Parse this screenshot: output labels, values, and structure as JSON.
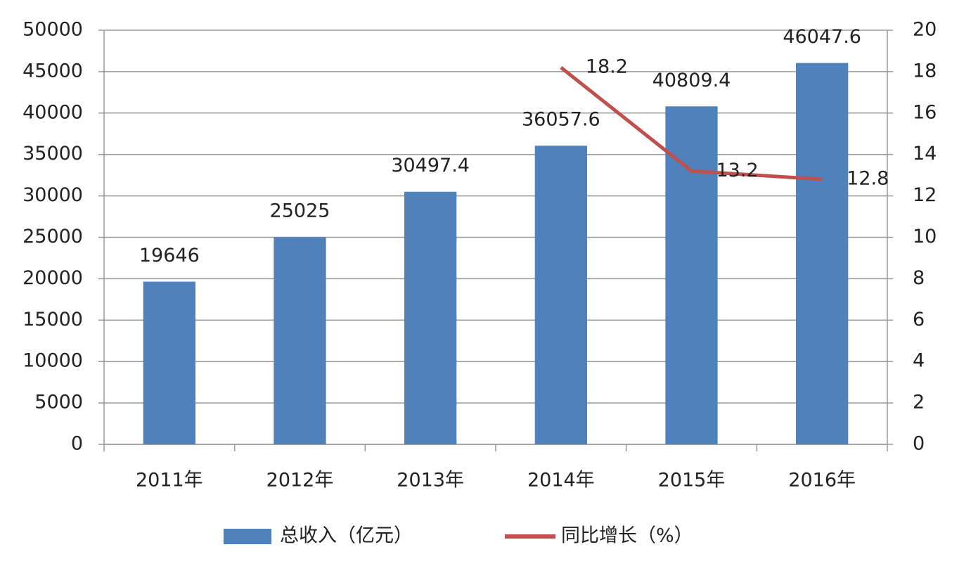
{
  "chart_data": {
    "type": "bar",
    "categories": [
      "2011年",
      "2012年",
      "2013年",
      "2014年",
      "2015年",
      "2016年"
    ],
    "series": [
      {
        "name": "总收入（亿元）",
        "type": "bar",
        "color": "#4f81bd",
        "values": [
          19646,
          25025,
          30497.4,
          36057.6,
          40809.4,
          46047.6
        ]
      },
      {
        "name": "同比增长（%）",
        "type": "line",
        "axis": "y2",
        "color": "#c0504d",
        "values": [
          null,
          null,
          null,
          18.2,
          13.2,
          12.8
        ]
      }
    ],
    "ylim": [
      0,
      50000
    ],
    "yticks": [
      0,
      5000,
      10000,
      15000,
      20000,
      25000,
      30000,
      35000,
      40000,
      45000,
      50000
    ],
    "y2lim": [
      0,
      20
    ],
    "y2ticks": [
      0,
      2,
      4,
      6,
      8,
      10,
      12,
      14,
      16,
      18,
      20
    ],
    "grid": true,
    "legend": "bottom"
  }
}
